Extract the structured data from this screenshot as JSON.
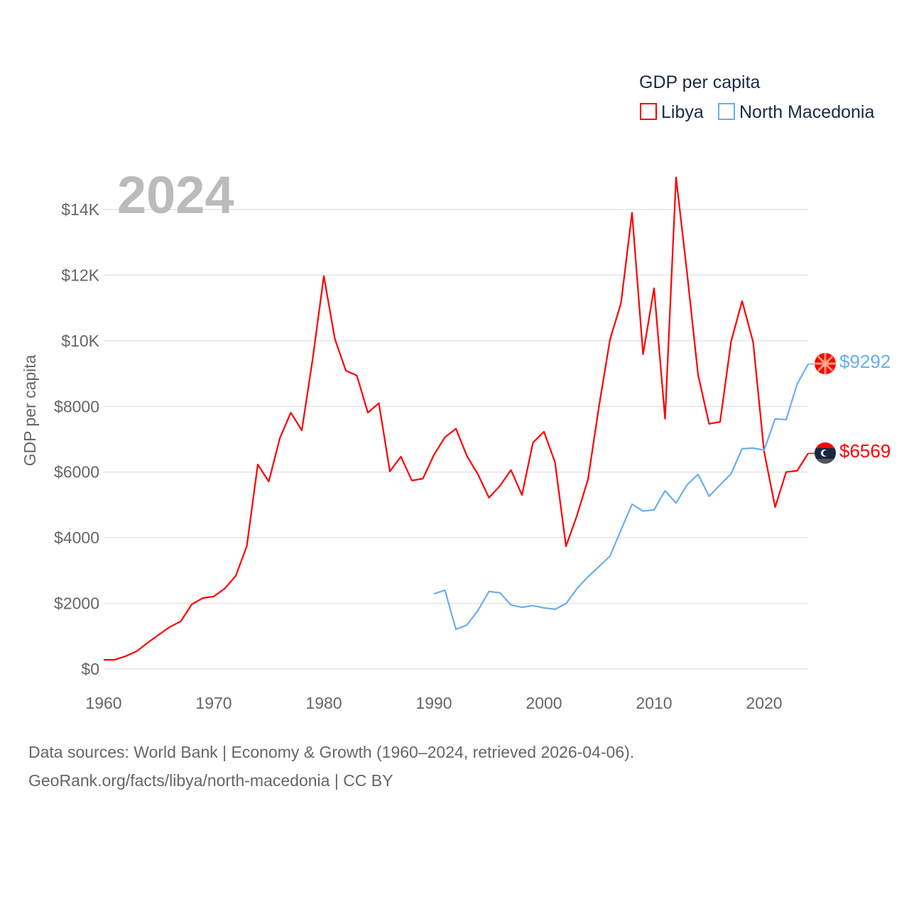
{
  "chart_data": {
    "type": "line",
    "year_label": "2024",
    "ylabel": "GDP per capita",
    "legend": {
      "title": "GDP per capita",
      "placement": "top-right"
    },
    "xlim": [
      1960,
      2024
    ],
    "ylim": [
      0,
      14000
    ],
    "x_ticks": [
      "1960",
      "1970",
      "1980",
      "1990",
      "2000",
      "2010",
      "2020"
    ],
    "y_ticks": [
      {
        "v": 0,
        "label": "$0"
      },
      {
        "v": 2000,
        "label": "$2000"
      },
      {
        "v": 4000,
        "label": "$4000"
      },
      {
        "v": 6000,
        "label": "$6000"
      },
      {
        "v": 8000,
        "label": "$8000"
      },
      {
        "v": 10000,
        "label": "$10K"
      },
      {
        "v": 12000,
        "label": "$12K"
      },
      {
        "v": 14000,
        "label": "$14K"
      }
    ],
    "series": [
      {
        "name": "Libya",
        "color": "#ff0000",
        "end_label": "$6569",
        "start": 1960,
        "values": [
          280,
          280,
          390,
          540,
          800,
          1040,
          1280,
          1450,
          1970,
          2160,
          2210,
          2450,
          2840,
          3740,
          6230,
          5710,
          7030,
          7810,
          7270,
          9480,
          11970,
          10060,
          9090,
          8940,
          7810,
          8100,
          6020,
          6470,
          5740,
          5800,
          6520,
          7060,
          7320,
          6490,
          5930,
          5220,
          5580,
          6060,
          5300,
          6900,
          7230,
          6300,
          3740,
          4680,
          5780,
          8010,
          10040,
          11150,
          13900,
          9590,
          11600,
          7620,
          14980,
          12060,
          8960,
          7470,
          7530,
          9980,
          11210,
          9960,
          6620,
          4930,
          6000,
          6040,
          6569
        ]
      },
      {
        "name": "North Macedonia",
        "color": "#6aaef0",
        "end_label": "$9292",
        "start": 1990,
        "values": [
          2290,
          2400,
          1210,
          1340,
          1780,
          2360,
          2320,
          1950,
          1880,
          1930,
          1860,
          1820,
          1990,
          2450,
          2810,
          3120,
          3440,
          4240,
          5020,
          4810,
          4850,
          5430,
          5060,
          5610,
          5930,
          5260,
          5610,
          5950,
          6710,
          6730,
          6670,
          7620,
          7600,
          8680,
          9292
        ]
      }
    ]
  },
  "footer": {
    "line1": "Data sources: World Bank | Economy & Growth (1960–2024, retrieved 2026-04-06).",
    "line2": "GeoRank.org/facts/libya/north-macedonia | CC BY"
  }
}
